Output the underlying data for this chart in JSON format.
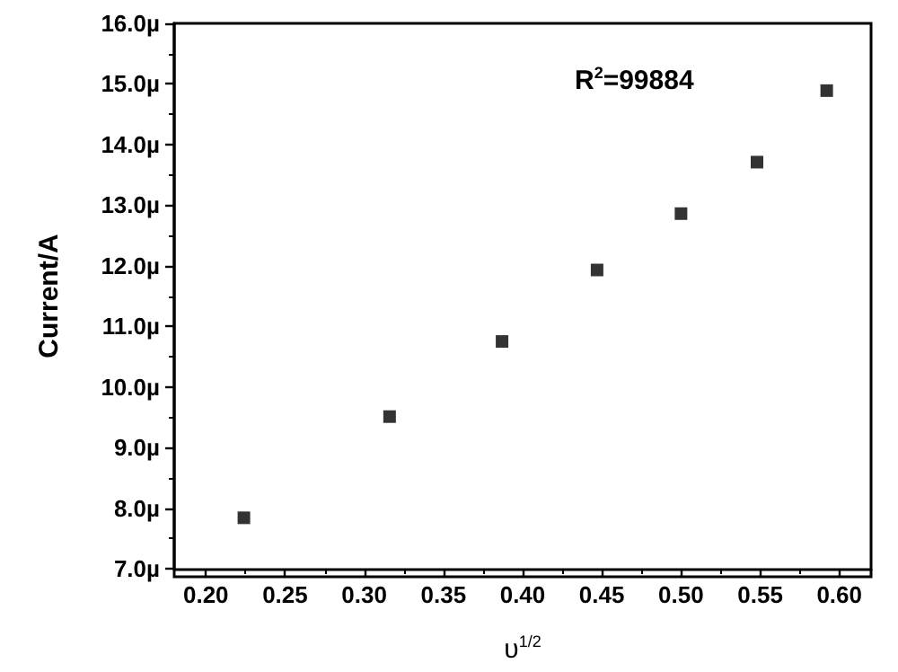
{
  "chart_data": {
    "type": "scatter",
    "xlabel": "υ$^{1/2}$",
    "ylabel": "Current/A",
    "annotations": [
      "R$^{2}$=99884"
    ],
    "x": [
      0.224,
      0.316,
      0.387,
      0.447,
      0.5,
      0.548,
      0.592
    ],
    "series": [
      {
        "color": "#000000",
        "values": [
          7.84,
          9.51,
          10.75,
          11.93,
          12.86,
          13.71,
          14.89
        ]
      }
    ],
    "xlim": [
      0.18,
      0.62
    ],
    "xticks": [
      {
        "value": 0.2,
        "label": "0.20"
      },
      {
        "value": 0.25,
        "label": "0.25"
      },
      {
        "value": 0.3,
        "label": "0.30"
      },
      {
        "value": 0.35,
        "label": "0.35"
      },
      {
        "value": 0.4,
        "label": "0.40"
      },
      {
        "value": 0.45,
        "label": "0.45"
      },
      {
        "value": 0.5,
        "label": "0.50"
      },
      {
        "value": 0.55,
        "label": "0.55"
      },
      {
        "value": 0.6,
        "label": "0.60"
      }
    ],
    "ylim": [
      7,
      16
    ],
    "yticks": [
      {
        "value": 7,
        "label": "7.0µ"
      },
      {
        "value": 8,
        "label": "8.0µ"
      },
      {
        "value": 9,
        "label": "9.0µ"
      },
      {
        "value": 10,
        "label": "10.0µ"
      },
      {
        "value": 11,
        "label": "11.0µ"
      },
      {
        "value": 12,
        "label": "12.0µ"
      },
      {
        "value": 13,
        "label": "13.0µ"
      },
      {
        "value": 14,
        "label": "14.0µ"
      },
      {
        "value": 15,
        "label": "15.0µ"
      },
      {
        "value": 16,
        "label": "16.0µ"
      }
    ],
    "marker": "square"
  }
}
